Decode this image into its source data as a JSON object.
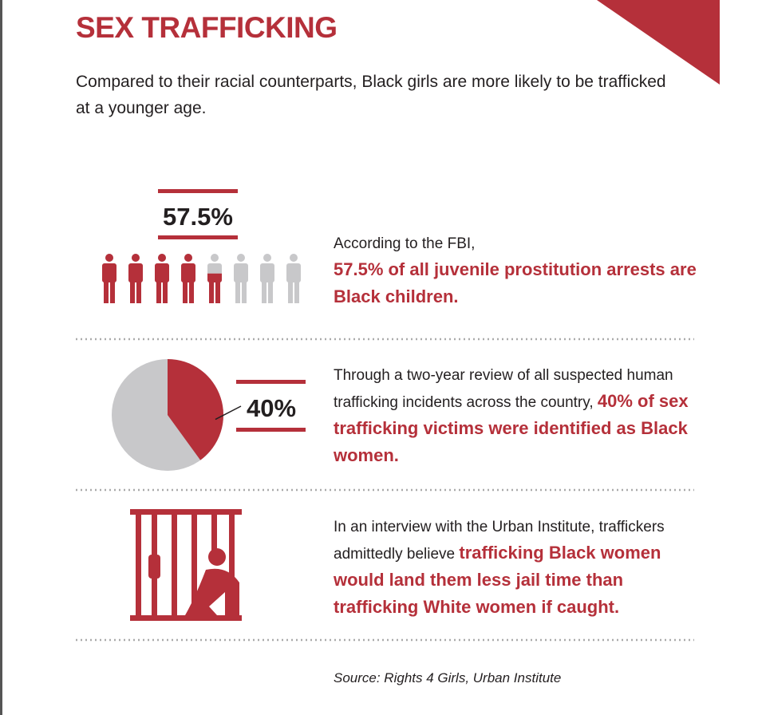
{
  "header": {
    "title": "SEX TRAFFICKING",
    "subtitle": "Compared to their racial counterparts, Black girls are more likely to be trafficked at a younger age."
  },
  "sections": [
    {
      "stat": {
        "value": 57.5,
        "label": "57.5%"
      },
      "text": "According to the FBI,",
      "highlight": "57.5% of all juvenile prostitution arrests are Black children."
    },
    {
      "stat": {
        "value": 40,
        "label": "40%"
      },
      "text": "Through a two-year review of all suspected human trafficking incidents across the country,",
      "highlight": "40% of sex trafficking victims were identified as Black women."
    },
    {
      "text": "In an interview with the Urban Institute, traffickers admittedly believe",
      "highlight": "trafficking Black women would land them less jail time than trafficking White women if caught."
    }
  ],
  "source": "Source: Rights 4 Girls, Urban Institute"
}
